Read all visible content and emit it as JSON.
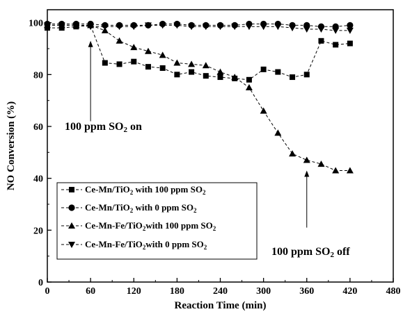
{
  "chart_data": {
    "type": "line",
    "xlabel": "Reaction Time (min)",
    "ylabel": "NO Conversion (%)",
    "xlim": [
      0,
      480
    ],
    "ylim": [
      0,
      105
    ],
    "xticks": [
      0,
      60,
      120,
      180,
      240,
      300,
      360,
      420,
      480
    ],
    "yticks": [
      0,
      20,
      40,
      60,
      80,
      100
    ],
    "grid": false,
    "legend_position": "bottom-left",
    "series": [
      {
        "name": "Ce-Mn/TiO2 with 100 ppm SO2",
        "legend_parts": [
          "Ce-Mn/TiO",
          "2",
          " with 100 ppm SO",
          "2"
        ],
        "marker": "square",
        "x": [
          0,
          20,
          40,
          60,
          80,
          100,
          120,
          140,
          160,
          180,
          200,
          220,
          240,
          260,
          280,
          300,
          320,
          340,
          360,
          380,
          400,
          420
        ],
        "y": [
          98,
          98,
          98.5,
          99,
          84.5,
          84,
          85,
          83,
          82.5,
          80,
          81,
          79.5,
          79,
          78.5,
          78,
          82,
          81,
          79,
          80,
          93,
          91.5,
          92
        ]
      },
      {
        "name": "Ce-Mn/TiO2 with 0 ppm SO2",
        "legend_parts": [
          "Ce-Mn/TiO",
          "2",
          " with 0 ppm SO",
          "2"
        ],
        "marker": "circle",
        "x": [
          0,
          20,
          40,
          60,
          80,
          100,
          120,
          140,
          160,
          180,
          200,
          220,
          240,
          260,
          280,
          300,
          320,
          340,
          360,
          380,
          400,
          420
        ],
        "y": [
          99.5,
          99.5,
          99.5,
          99.5,
          99,
          99,
          99,
          99,
          99.5,
          99.5,
          99,
          99,
          99,
          99,
          99.5,
          99.5,
          99.5,
          99,
          99,
          98.5,
          98.5,
          99
        ]
      },
      {
        "name": "Ce-Mn-Fe/TiO2with 100 ppm SO2",
        "legend_parts": [
          "Ce-Mn-Fe/TiO",
          "2",
          "with 100 ppm SO",
          "2"
        ],
        "marker": "triangle-up",
        "x": [
          0,
          20,
          40,
          60,
          80,
          100,
          120,
          140,
          160,
          180,
          200,
          220,
          240,
          260,
          280,
          300,
          320,
          340,
          360,
          380,
          400,
          420
        ],
        "y": [
          99,
          99,
          99,
          99,
          97,
          93,
          90.5,
          89,
          87.5,
          84.5,
          84,
          83.5,
          81,
          79,
          75,
          66,
          57.5,
          49.5,
          47,
          45.5,
          43,
          43
        ]
      },
      {
        "name": "Ce-Mn-Fe/TiO2with 0 ppm SO2",
        "legend_parts": [
          "Ce-Mn-Fe/TiO",
          "2",
          "with 0 ppm SO",
          "2"
        ],
        "marker": "triangle-down",
        "x": [
          0,
          20,
          40,
          60,
          80,
          100,
          120,
          140,
          160,
          180,
          200,
          220,
          240,
          260,
          280,
          300,
          320,
          340,
          360,
          380,
          400,
          420
        ],
        "y": [
          99,
          99,
          99,
          98.5,
          98.5,
          98.5,
          98.5,
          99,
          99,
          99,
          98.5,
          98.5,
          98.5,
          98.5,
          98.5,
          98.5,
          98.5,
          98,
          97.5,
          97.5,
          97,
          97
        ]
      }
    ],
    "annotations": [
      {
        "text_parts": [
          "100 ppm SO",
          "2",
          " on"
        ],
        "arrow_x": 60,
        "arrow_from_y": 62,
        "arrow_to_y": 93
      },
      {
        "text_parts": [
          "100 ppm SO",
          "2",
          " off"
        ],
        "arrow_x": 360,
        "arrow_from_y": 21,
        "arrow_to_y": 43
      }
    ]
  }
}
